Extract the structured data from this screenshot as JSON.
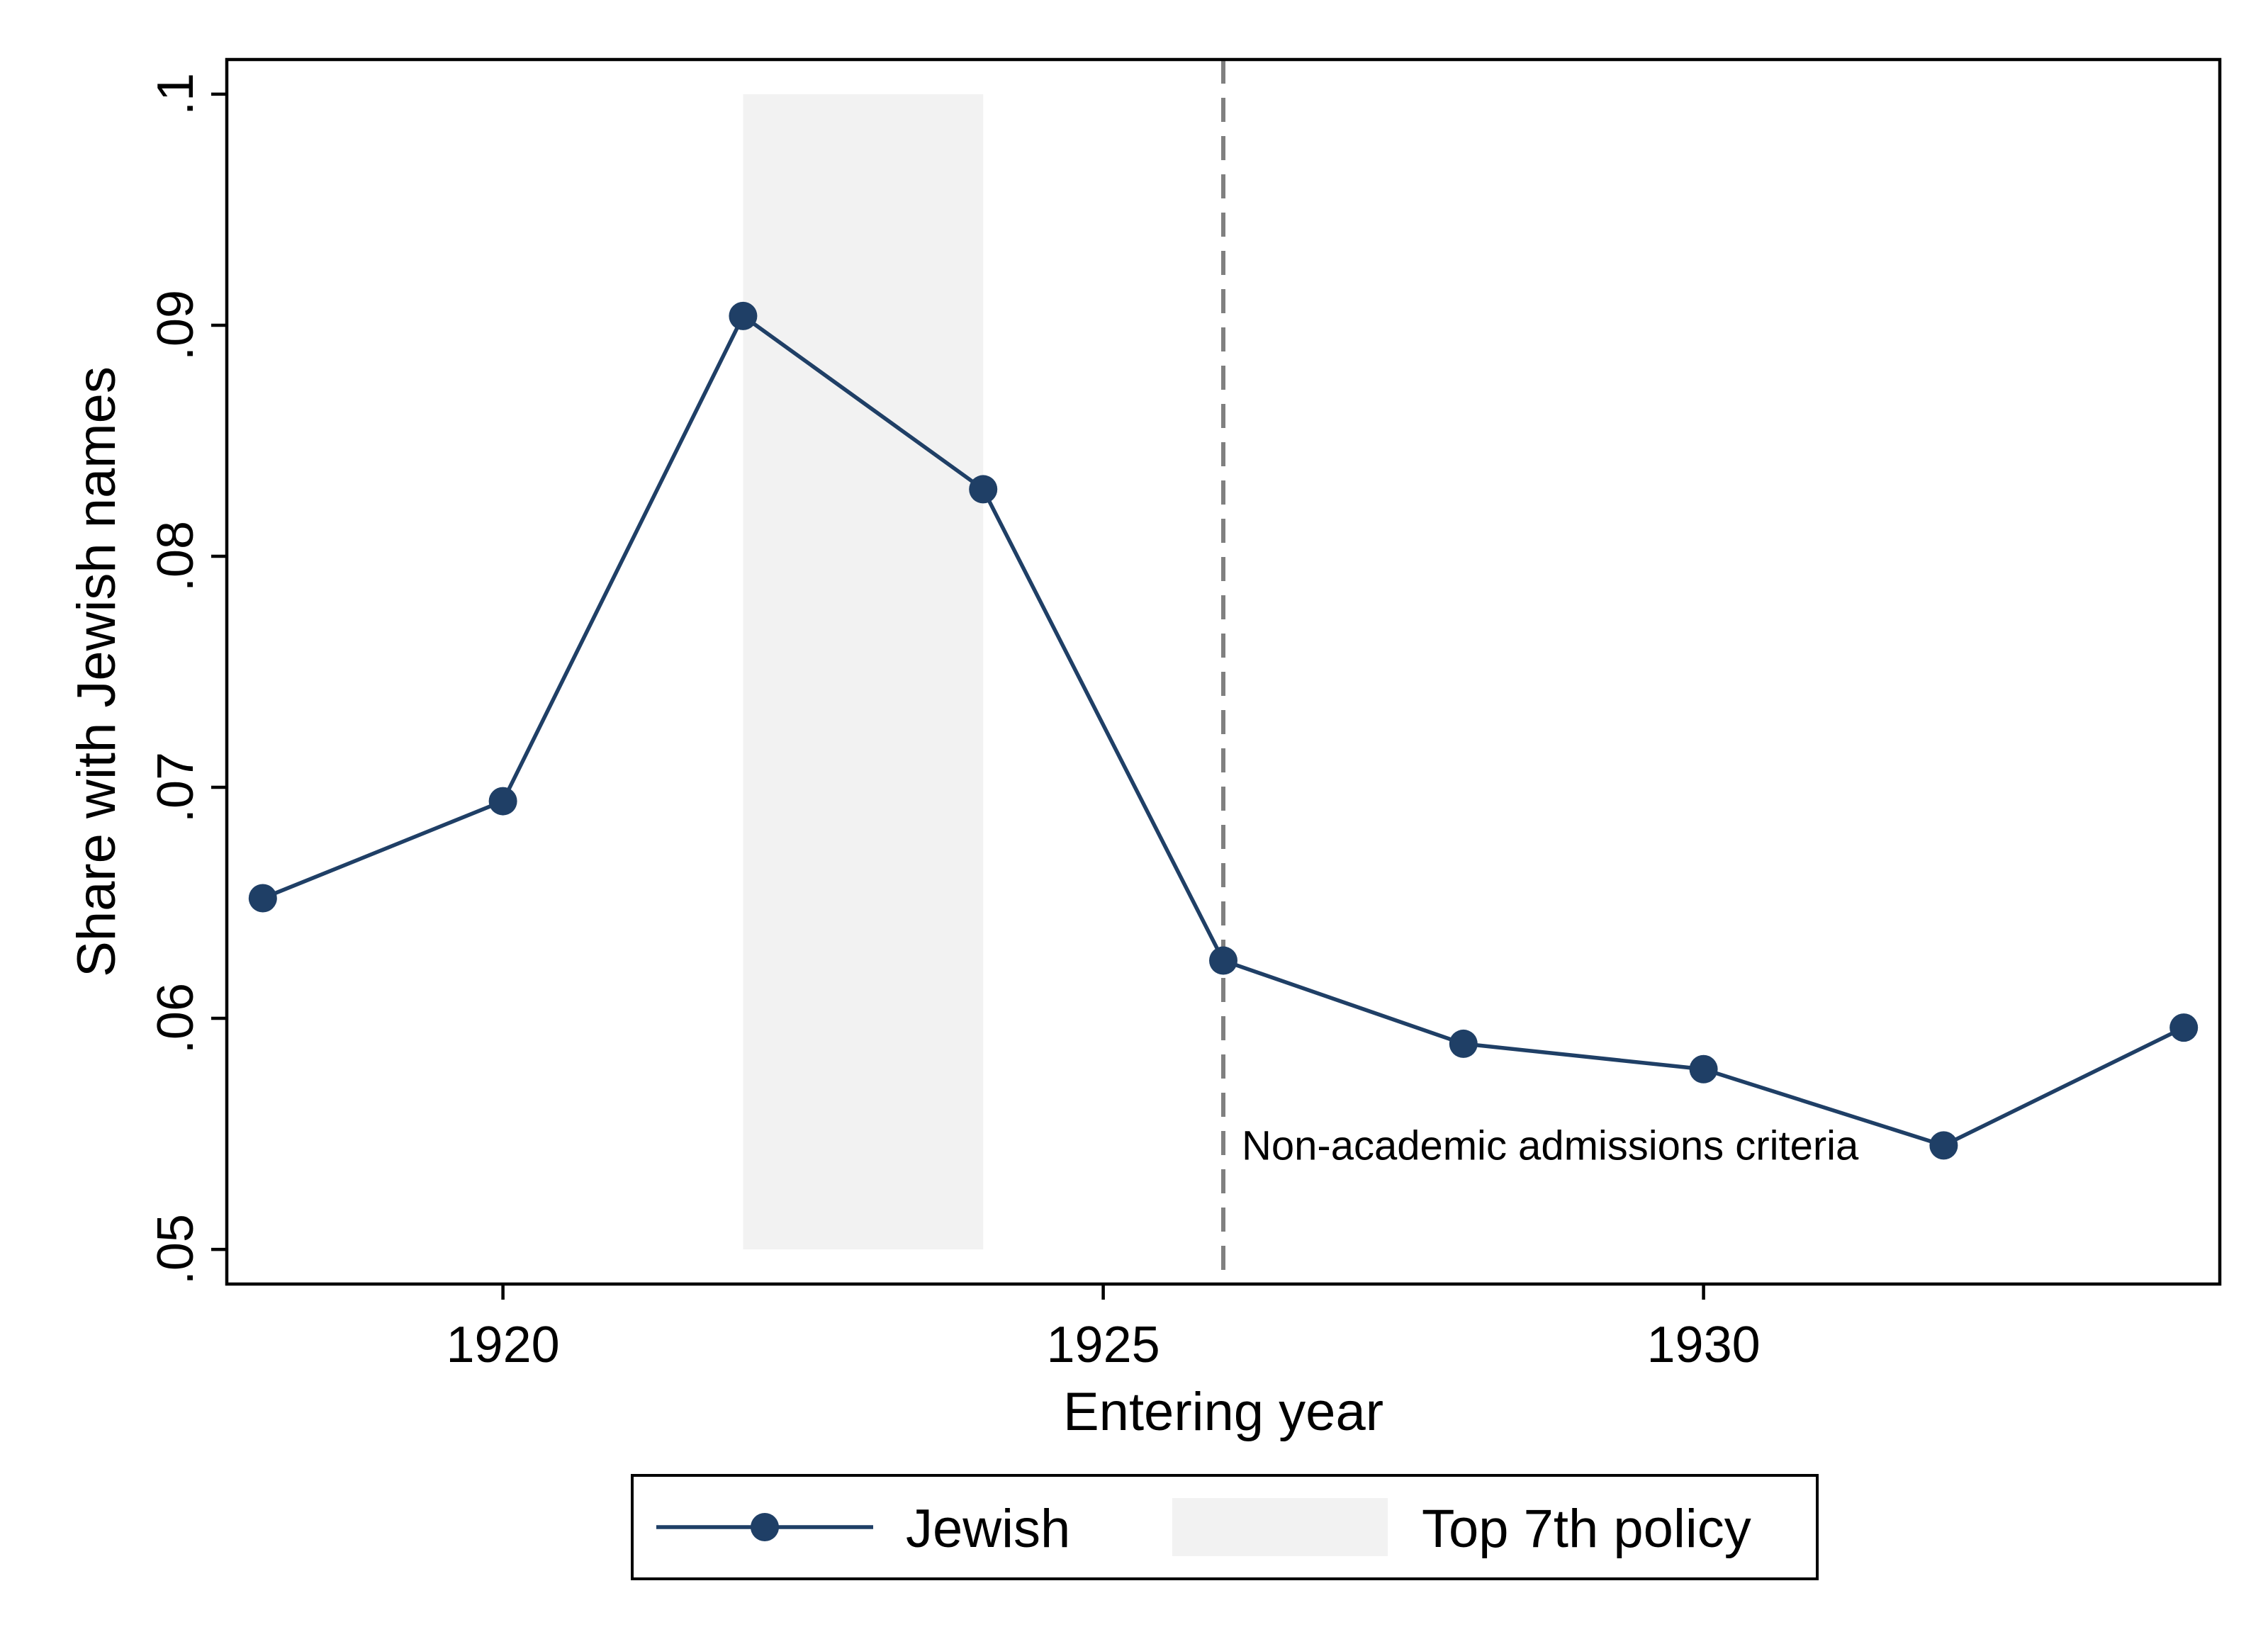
{
  "chart_data": {
    "type": "line",
    "xlabel": "Entering year",
    "ylabel": "Share with Jewish names",
    "xlim": [
      1917.7,
      1934.3
    ],
    "ylim": [
      0.0485,
      0.1015
    ],
    "x_ticks": [
      {
        "value": 1920,
        "label": "1920"
      },
      {
        "value": 1925,
        "label": "1925"
      },
      {
        "value": 1930,
        "label": "1930"
      }
    ],
    "y_ticks": [
      {
        "value": 0.05,
        "label": ".05"
      },
      {
        "value": 0.06,
        "label": ".06"
      },
      {
        "value": 0.07,
        "label": ".07"
      },
      {
        "value": 0.08,
        "label": ".08"
      },
      {
        "value": 0.09,
        "label": ".09"
      },
      {
        "value": 0.1,
        "label": ".1"
      }
    ],
    "grid": false,
    "series": [
      {
        "name": "Jewish",
        "color": "#1f3f66",
        "x": [
          1918,
          1920,
          1922,
          1924,
          1926,
          1928,
          1930,
          1932,
          1934
        ],
        "y": [
          0.0652,
          0.0694,
          0.0904,
          0.0829,
          0.0625,
          0.0589,
          0.0578,
          0.0545,
          0.0596
        ]
      }
    ],
    "shaded_region": {
      "name": "Top 7th policy",
      "x": [
        1922,
        1924
      ],
      "y": [
        0.05,
        0.1
      ],
      "color": "#f2f2f2"
    },
    "vline": {
      "x": 1926,
      "style": "dashed",
      "color": "#808080",
      "label": "Non-academic admissions criteria"
    },
    "legend": {
      "placement": "bottom",
      "entries": [
        "Jewish",
        "Top 7th policy"
      ]
    }
  }
}
